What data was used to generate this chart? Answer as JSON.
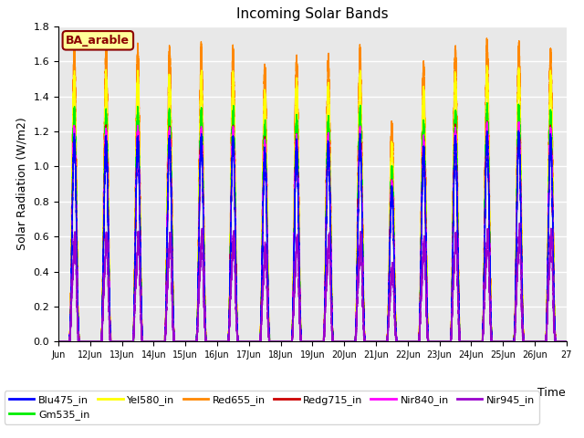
{
  "title": "Incoming Solar Bands",
  "xlabel": "Time",
  "ylabel": "Solar Radiation (W/m2)",
  "ylim": [
    0.0,
    1.8
  ],
  "annotation_text": "BA_arable",
  "annotation_color": "#8B0000",
  "annotation_bg": "#FFFF99",
  "annotation_border": "#8B0000",
  "series": [
    {
      "label": "Blu475_in",
      "color": "#0000FF",
      "amplitude": 1.15,
      "lw": 1.0
    },
    {
      "label": "Gm535_in",
      "color": "#00EE00",
      "amplitude": 1.3,
      "lw": 1.0
    },
    {
      "label": "Yel580_in",
      "color": "#FFFF00",
      "amplitude": 1.5,
      "lw": 1.0
    },
    {
      "label": "Red655_in",
      "color": "#FF8800",
      "amplitude": 1.65,
      "lw": 1.0
    },
    {
      "label": "Redg715_in",
      "color": "#CC0000",
      "amplitude": 1.2,
      "lw": 1.0
    },
    {
      "label": "Nir840_in",
      "color": "#FF00FF",
      "amplitude": 1.2,
      "lw": 1.0
    },
    {
      "label": "Nir945_in",
      "color": "#9900CC",
      "amplitude": 0.57,
      "lw": 1.0
    }
  ],
  "n_days": 16,
  "tick_labels": [
    "Jun",
    "12Jun",
    "13Jun",
    "14Jun",
    "15Jun",
    "16Jun",
    "17Jun",
    "18Jun",
    "19Jun",
    "20Jun",
    "21Jun",
    "22Jun",
    "23Jun",
    "24Jun",
    "25Jun",
    "26Jun",
    "27"
  ],
  "background_color": "#E8E8E8",
  "grid_color": "#FFFFFF",
  "fig_bg": "#FFFFFF",
  "day_peak_factors": [
    1.0,
    1.0,
    1.0,
    1.0,
    1.0,
    1.0,
    0.94,
    0.97,
    0.97,
    1.0,
    0.75,
    0.95,
    1.0,
    1.02,
    1.02,
    1.0
  ],
  "day_peak_factors_nir": [
    1.0,
    1.0,
    1.0,
    1.0,
    1.0,
    1.0,
    0.89,
    0.97,
    0.97,
    1.0,
    0.72,
    0.95,
    1.0,
    1.02,
    1.02,
    1.0
  ]
}
